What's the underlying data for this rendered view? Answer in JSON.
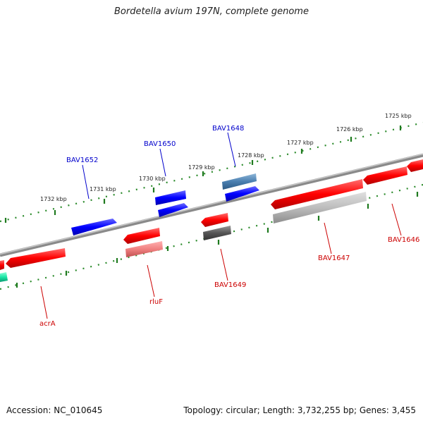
{
  "title": "Bordetella avium 197N, complete genome",
  "footer": {
    "accession": "Accession: NC_010645",
    "topology": "Topology: circular; Length: 3,732,255 bp; Genes: 3,455"
  },
  "scale": [
    "1725 kbp",
    "1726 kbp",
    "1727 kbp",
    "1728 kbp",
    "1729 kbp",
    "1730 kbp",
    "1731 kbp",
    "1732 kbp"
  ],
  "genes": [
    {
      "name": "BAV1652",
      "color": "#0000cc"
    },
    {
      "name": "BAV1650",
      "color": "#0000cc"
    },
    {
      "name": "BAV1648",
      "color": "#0000cc"
    },
    {
      "name": "acrA",
      "color": "#cc0000"
    },
    {
      "name": "rluF",
      "color": "#cc0000"
    },
    {
      "name": "BAV1649",
      "color": "#cc0000"
    },
    {
      "name": "BAV1647",
      "color": "#cc0000"
    },
    {
      "name": "BAV1646",
      "color": "#cc0000"
    }
  ]
}
